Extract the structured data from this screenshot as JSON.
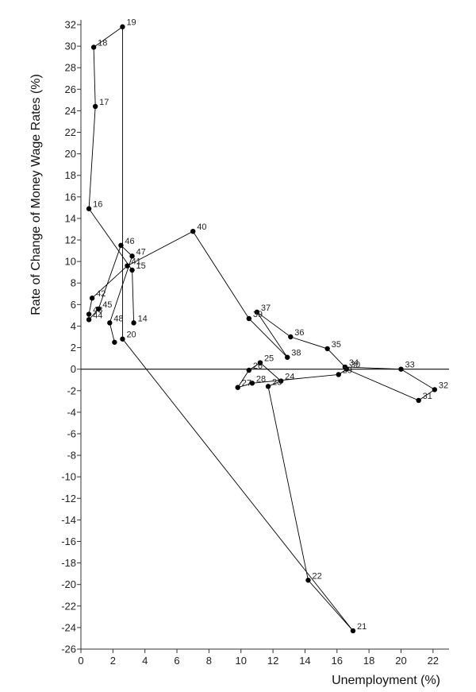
{
  "chart_data": {
    "type": "line",
    "title": "",
    "xlabel": "Unemployment (%)",
    "ylabel": "Rate of Change of Money Wage Rates (%)",
    "xlim": [
      0,
      23
    ],
    "ylim": [
      -26,
      32
    ],
    "x_ticks": [
      0,
      2,
      4,
      6,
      8,
      10,
      12,
      14,
      16,
      18,
      20,
      22
    ],
    "y_ticks": [
      32,
      30,
      28,
      26,
      24,
      22,
      20,
      18,
      16,
      14,
      12,
      10,
      8,
      6,
      4,
      2,
      0,
      -2,
      -4,
      -6,
      -8,
      -10,
      -12,
      -14,
      -16,
      -18,
      -20,
      -22,
      -24,
      -26
    ],
    "zero_line": true,
    "grid": false,
    "connected": true,
    "marker": "filled-circle",
    "line_color": "#000000",
    "marker_color": "#000000",
    "points": [
      {
        "label": "14",
        "x": 3.3,
        "y": 4.3
      },
      {
        "label": "15",
        "x": 3.2,
        "y": 9.2
      },
      {
        "label": "16",
        "x": 0.5,
        "y": 14.9
      },
      {
        "label": "17",
        "x": 0.9,
        "y": 24.4
      },
      {
        "label": "18",
        "x": 0.8,
        "y": 29.9
      },
      {
        "label": "19",
        "x": 2.6,
        "y": 31.8
      },
      {
        "label": "20",
        "x": 2.6,
        "y": 2.8
      },
      {
        "label": "21",
        "x": 17.0,
        "y": -24.3
      },
      {
        "label": "22",
        "x": 14.2,
        "y": -19.6
      },
      {
        "label": "23",
        "x": 11.7,
        "y": -1.6
      },
      {
        "label": "24",
        "x": 12.5,
        "y": -1.1
      },
      {
        "label": "25",
        "x": 11.2,
        "y": 0.6
      },
      {
        "label": "26",
        "x": 10.5,
        "y": -0.1
      },
      {
        "label": "27",
        "x": 9.8,
        "y": -1.7
      },
      {
        "label": "28",
        "x": 10.7,
        "y": -1.3
      },
      {
        "label": "29",
        "x": 16.1,
        "y": -0.5
      },
      {
        "label": "30",
        "x": 16.6,
        "y": 0.0
      },
      {
        "label": "31",
        "x": 21.1,
        "y": -2.9
      },
      {
        "label": "32",
        "x": 22.1,
        "y": -1.9
      },
      {
        "label": "33",
        "x": 20.0,
        "y": 0.0
      },
      {
        "label": "34",
        "x": 16.5,
        "y": 0.2
      },
      {
        "label": "35",
        "x": 15.4,
        "y": 1.9
      },
      {
        "label": "36",
        "x": 13.1,
        "y": 3.0
      },
      {
        "label": "37",
        "x": 11.0,
        "y": 5.3
      },
      {
        "label": "38",
        "x": 12.9,
        "y": 1.1
      },
      {
        "label": "39",
        "x": 10.5,
        "y": 4.7
      },
      {
        "label": "40",
        "x": 7.0,
        "y": 12.8
      },
      {
        "label": "41",
        "x": 2.9,
        "y": 9.6
      },
      {
        "label": "42",
        "x": 0.7,
        "y": 6.6
      },
      {
        "label": "43",
        "x": 0.5,
        "y": 5.1
      },
      {
        "label": "44",
        "x": 0.5,
        "y": 4.6
      },
      {
        "label": "45",
        "x": 1.1,
        "y": 5.6
      },
      {
        "label": "46",
        "x": 2.5,
        "y": 11.5
      },
      {
        "label": "47",
        "x": 3.2,
        "y": 10.5
      },
      {
        "label": "48",
        "x": 1.8,
        "y": 4.3
      },
      {
        "label": "",
        "x": 2.1,
        "y": 2.5
      }
    ]
  }
}
